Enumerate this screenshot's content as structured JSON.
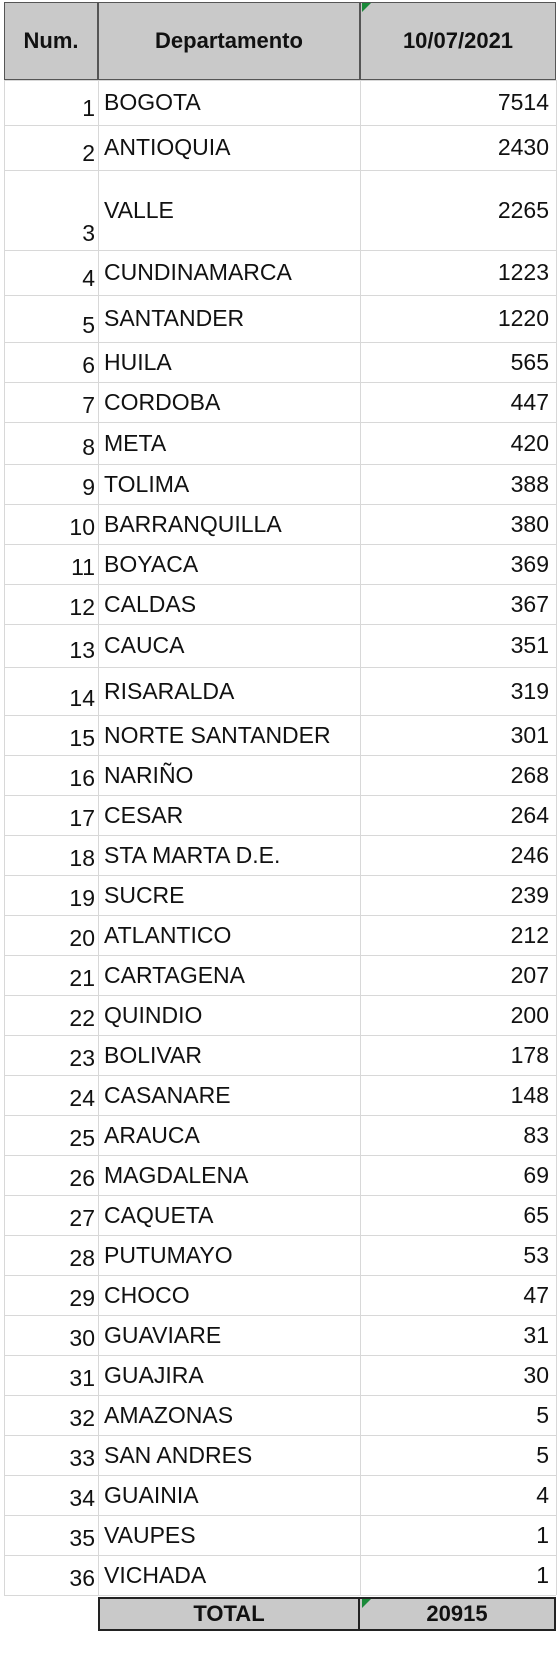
{
  "header": {
    "num": "Num.",
    "departamento": "Departamento",
    "date": "10/07/2021"
  },
  "rows": [
    {
      "num": "1",
      "name": "BOGOTA",
      "value": "7514"
    },
    {
      "num": "2",
      "name": "ANTIOQUIA",
      "value": "2430"
    },
    {
      "num": "3",
      "name": "VALLE",
      "value": "2265"
    },
    {
      "num": "4",
      "name": "CUNDINAMARCA",
      "value": "1223"
    },
    {
      "num": "5",
      "name": "SANTANDER",
      "value": "1220"
    },
    {
      "num": "6",
      "name": "HUILA",
      "value": "565"
    },
    {
      "num": "7",
      "name": "CORDOBA",
      "value": "447"
    },
    {
      "num": "8",
      "name": "META",
      "value": "420"
    },
    {
      "num": "9",
      "name": "TOLIMA",
      "value": "388"
    },
    {
      "num": "10",
      "name": "BARRANQUILLA",
      "value": "380"
    },
    {
      "num": "11",
      "name": "BOYACA",
      "value": "369"
    },
    {
      "num": "12",
      "name": "CALDAS",
      "value": "367"
    },
    {
      "num": "13",
      "name": "CAUCA",
      "value": "351"
    },
    {
      "num": "14",
      "name": "RISARALDA",
      "value": "319"
    },
    {
      "num": "15",
      "name": "NORTE SANTANDER",
      "value": "301"
    },
    {
      "num": "16",
      "name": "NARIÑO",
      "value": "268"
    },
    {
      "num": "17",
      "name": "CESAR",
      "value": "264"
    },
    {
      "num": "18",
      "name": "STA MARTA D.E.",
      "value": "246"
    },
    {
      "num": "19",
      "name": "SUCRE",
      "value": "239"
    },
    {
      "num": "20",
      "name": "ATLANTICO",
      "value": "212"
    },
    {
      "num": "21",
      "name": "CARTAGENA",
      "value": "207"
    },
    {
      "num": "22",
      "name": "QUINDIO",
      "value": "200"
    },
    {
      "num": "23",
      "name": "BOLIVAR",
      "value": "178"
    },
    {
      "num": "24",
      "name": "CASANARE",
      "value": "148"
    },
    {
      "num": "25",
      "name": "ARAUCA",
      "value": "83"
    },
    {
      "num": "26",
      "name": "MAGDALENA",
      "value": "69"
    },
    {
      "num": "27",
      "name": "CAQUETA",
      "value": "65"
    },
    {
      "num": "28",
      "name": "PUTUMAYO",
      "value": "53"
    },
    {
      "num": "29",
      "name": "CHOCO",
      "value": "47"
    },
    {
      "num": "30",
      "name": "GUAVIARE",
      "value": "31"
    },
    {
      "num": "31",
      "name": "GUAJIRA",
      "value": "30"
    },
    {
      "num": "32",
      "name": "AMAZONAS",
      "value": "5"
    },
    {
      "num": "33",
      "name": "SAN ANDRES",
      "value": "5"
    },
    {
      "num": "34",
      "name": "GUAINIA",
      "value": "4"
    },
    {
      "num": "35",
      "name": "VAUPES",
      "value": "1"
    },
    {
      "num": "36",
      "name": "VICHADA",
      "value": "1"
    }
  ],
  "total": {
    "label": "TOTAL",
    "value": "20915"
  },
  "colors": {
    "header_bg": "#c9c9c9",
    "grid": "#d8d8d8",
    "border": "#222222",
    "indicator": "#1a8a3a"
  }
}
